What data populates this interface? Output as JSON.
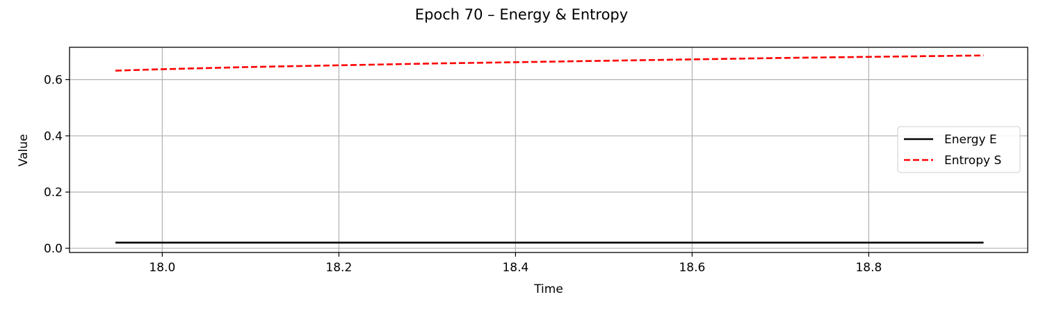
{
  "chart_data": {
    "type": "line",
    "title": "Epoch 70 – Energy & Entropy",
    "xlabel": "Time",
    "ylabel": "Value",
    "xlim": [
      17.895,
      18.98
    ],
    "ylim": [
      -0.015,
      0.715
    ],
    "xticks": [
      18.0,
      18.2,
      18.4,
      18.6,
      18.8
    ],
    "xtick_labels": [
      "18.0",
      "18.2",
      "18.4",
      "18.6",
      "18.8"
    ],
    "yticks": [
      0.0,
      0.2,
      0.4,
      0.6
    ],
    "ytick_labels": [
      "0.0",
      "0.2",
      "0.4",
      "0.6"
    ],
    "grid": true,
    "legend_position": "center-right",
    "series": [
      {
        "name": "Energy E",
        "color": "#000000",
        "style": "solid",
        "x": [
          17.947,
          18.1,
          18.3,
          18.5,
          18.7,
          18.93
        ],
        "y": [
          0.02,
          0.02,
          0.02,
          0.02,
          0.02,
          0.02
        ]
      },
      {
        "name": "Entropy S",
        "color": "#ff0000",
        "style": "dashed",
        "x": [
          17.947,
          18.0,
          18.1,
          18.2,
          18.3,
          18.4,
          18.5,
          18.6,
          18.7,
          18.8,
          18.93
        ],
        "y": [
          0.632,
          0.637,
          0.645,
          0.651,
          0.657,
          0.662,
          0.667,
          0.672,
          0.677,
          0.681,
          0.686
        ]
      }
    ]
  }
}
